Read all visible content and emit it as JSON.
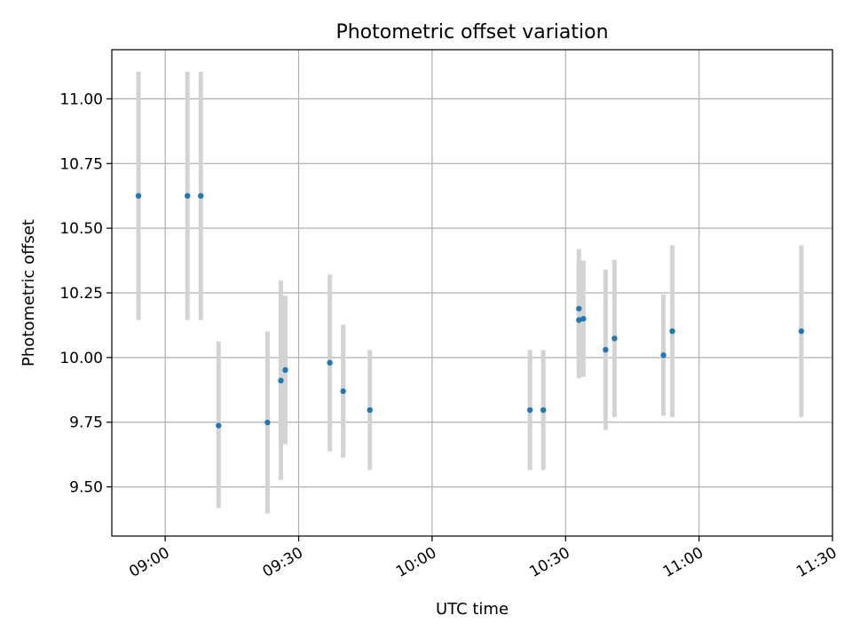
{
  "chart_data": {
    "type": "scatter",
    "title": "Photometric offset variation",
    "xlabel": "UTC time",
    "ylabel": "Photometric offset",
    "x_axis": "time (UTC)",
    "xlim": [
      "08:48",
      "11:30"
    ],
    "ylim": [
      9.31,
      11.19
    ],
    "grid": true,
    "legend": "none",
    "x_ticks": [
      "09:00",
      "09:30",
      "10:00",
      "10:30",
      "11:00",
      "11:30"
    ],
    "y_ticks": [
      "9.50",
      "9.75",
      "10.00",
      "10.25",
      "10.50",
      "10.75",
      "11.00"
    ],
    "point_color": "#1f77b4",
    "errorbar_color": "#d3d3d3",
    "points": [
      {
        "x": "08:54",
        "y": 10.625,
        "y_low": 10.145,
        "y_high": 11.105
      },
      {
        "x": "09:05",
        "y": 10.625,
        "y_low": 10.145,
        "y_high": 11.105
      },
      {
        "x": "09:08",
        "y": 10.625,
        "y_low": 10.145,
        "y_high": 11.105
      },
      {
        "x": "09:12",
        "y": 9.737,
        "y_low": 9.418,
        "y_high": 10.062
      },
      {
        "x": "09:23",
        "y": 9.749,
        "y_low": 9.397,
        "y_high": 10.101
      },
      {
        "x": "09:26",
        "y": 9.911,
        "y_low": 9.527,
        "y_high": 10.297
      },
      {
        "x": "09:27",
        "y": 9.952,
        "y_low": 9.665,
        "y_high": 10.239
      },
      {
        "x": "09:37",
        "y": 9.98,
        "y_low": 9.637,
        "y_high": 10.321
      },
      {
        "x": "09:40",
        "y": 9.87,
        "y_low": 9.613,
        "y_high": 10.127
      },
      {
        "x": "09:46",
        "y": 9.797,
        "y_low": 9.565,
        "y_high": 10.029
      },
      {
        "x": "10:22",
        "y": 9.797,
        "y_low": 9.565,
        "y_high": 10.029
      },
      {
        "x": "10:25",
        "y": 9.797,
        "y_low": 9.565,
        "y_high": 10.029
      },
      {
        "x": "10:33",
        "y": 10.145,
        "y_low": 9.92,
        "y_high": 10.37
      },
      {
        "x": "10:33",
        "y": 10.189,
        "y_low": 9.959,
        "y_high": 10.42
      },
      {
        "x": "10:34",
        "y": 10.15,
        "y_low": 9.925,
        "y_high": 10.375
      },
      {
        "x": "10:39",
        "y": 10.03,
        "y_low": 9.72,
        "y_high": 10.34
      },
      {
        "x": "10:41",
        "y": 10.074,
        "y_low": 9.77,
        "y_high": 10.378
      },
      {
        "x": "10:52",
        "y": 10.009,
        "y_low": 9.775,
        "y_high": 10.243
      },
      {
        "x": "10:54",
        "y": 10.102,
        "y_low": 9.77,
        "y_high": 10.434
      },
      {
        "x": "11:23",
        "y": 10.102,
        "y_low": 9.77,
        "y_high": 10.434
      }
    ]
  }
}
